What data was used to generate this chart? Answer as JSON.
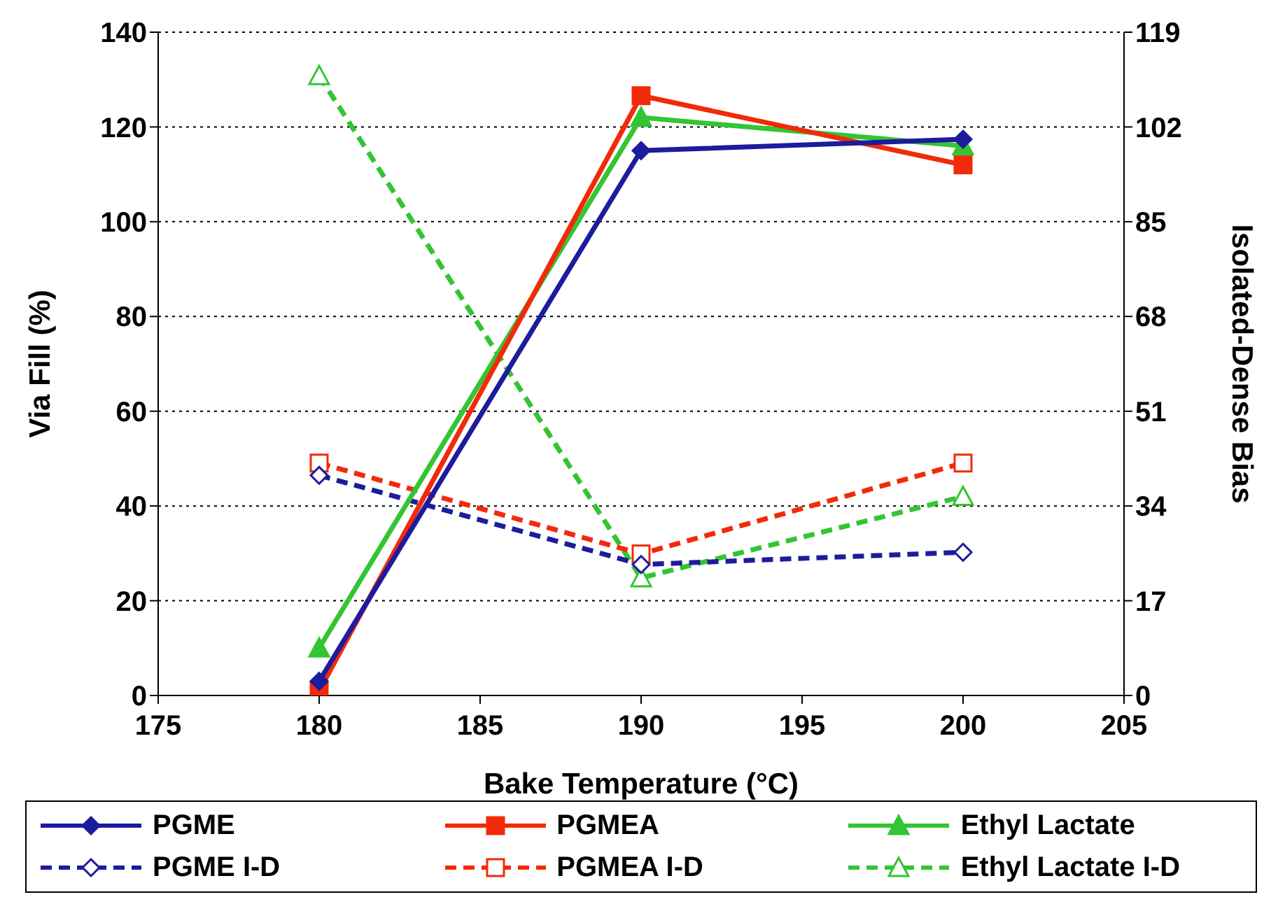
{
  "chart_data": {
    "type": "line",
    "xlabel": "Bake Temperature (°C)",
    "ylabel": "Via Fill (%)",
    "y2label": "Isolated-Dense Bias",
    "x": [
      180,
      190,
      200
    ],
    "series": [
      {
        "name": "PGME",
        "color": "#1c1c9c",
        "values": [
          3,
          115,
          117.4
        ],
        "marker": "diamond",
        "line_style": "solid"
      },
      {
        "name": "PGMEA",
        "color": "#f22a0a",
        "values": [
          1,
          126.6,
          112
        ],
        "marker": "square",
        "line_style": "solid"
      },
      {
        "name": "Ethyl Lactate",
        "color": "#33c533",
        "values": [
          10,
          122,
          116
        ],
        "marker": "triangle",
        "line_style": "solid"
      },
      {
        "name": "PGME I-D",
        "color": "#1c1c9c",
        "values": [
          39.5,
          23.5,
          25.7
        ],
        "marker": "diamond",
        "line_style": "dashed",
        "axis": "y2"
      },
      {
        "name": "PGMEA I-D",
        "color": "#f22a0a",
        "values": [
          41.7,
          25.4,
          41.7
        ],
        "marker": "square",
        "line_style": "dashed",
        "axis": "y2"
      },
      {
        "name": "Ethyl Lactate I-D",
        "color": "#33c533",
        "values": [
          111.2,
          21.1,
          35.7
        ],
        "marker": "triangle",
        "line_style": "dashed",
        "axis": "y2"
      }
    ],
    "xlim": [
      175,
      205
    ],
    "xticks": [
      175,
      180,
      185,
      190,
      195,
      200,
      205
    ],
    "ylim": [
      0,
      140
    ],
    "yticks": [
      0,
      20,
      40,
      60,
      80,
      100,
      120,
      140
    ],
    "y2lim": [
      0,
      119
    ],
    "y2ticks": [
      0,
      17,
      34,
      51,
      68,
      85,
      102,
      119
    ],
    "grid": "y",
    "legend": "bottom"
  }
}
